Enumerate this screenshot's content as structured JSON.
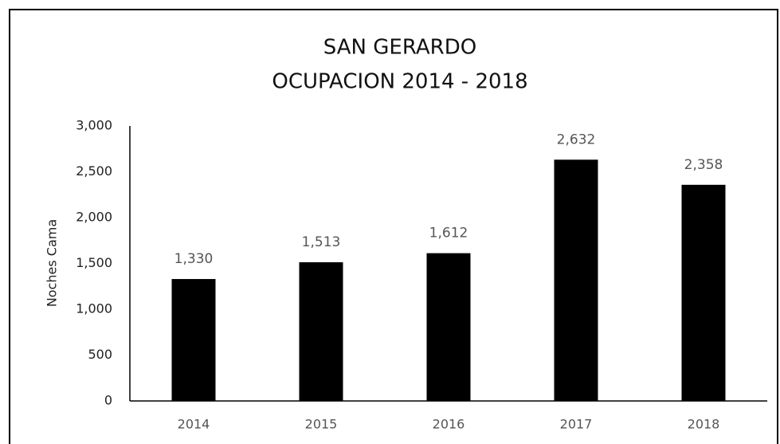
{
  "chart_data": {
    "type": "bar",
    "title": "SAN GERARDO",
    "subtitle": "OCUPACION 2014 - 2018",
    "y_axis_label": "Noches Cama",
    "categories": [
      "2014",
      "2015",
      "2016",
      "2017",
      "2018"
    ],
    "values": [
      1330,
      1513,
      1612,
      2632,
      2358
    ],
    "value_labels": [
      "1,330",
      "1,513",
      "1,612",
      "2,632",
      "2,358"
    ],
    "color": "#000000",
    "ylim": [
      0,
      3000
    ],
    "yticks": [
      0,
      500,
      {
        "value": 1000,
        "label": "1,000"
      },
      {
        "value": 1500,
        "label": "1,500"
      },
      {
        "value": 2000,
        "label": "2,000"
      },
      {
        "value": 2500,
        "label": "2,500"
      },
      {
        "value": 3000,
        "label": "3,000"
      }
    ],
    "grid": false
  }
}
